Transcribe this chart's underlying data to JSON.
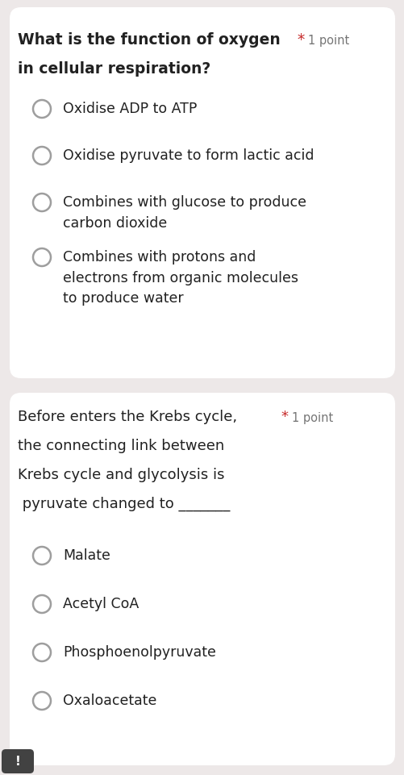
{
  "bg_color": "#ede8e8",
  "card_color": "#ffffff",
  "q1_title_bold": "What is the function of oxygen",
  "q1_title_bold2": "in cellular respiration?",
  "q1_star": "*",
  "q1_point": "1 point",
  "q1_options": [
    "Oxidise ADP to ATP",
    "Oxidise pyruvate to form lactic acid",
    "Combines with glucose to produce\ncarbon dioxide",
    "Combines with protons and\nelectrons from organic molecules\nto produce water"
  ],
  "q2_title_lines": [
    "Before enters the Krebs cycle,",
    "the connecting link between",
    "Krebs cycle and glycolysis is",
    " pyruvate changed to _______"
  ],
  "q2_star": "*",
  "q2_point": "1 point",
  "q2_options": [
    "Malate",
    "Acetyl CoA",
    "Phosphoenolpyruvate",
    "Oxaloacetate"
  ],
  "text_color": "#212121",
  "star_color": "#c62828",
  "point_color": "#757575",
  "circle_edge_color": "#9e9e9e",
  "circle_face_color": "#ffffff",
  "font_size_question_bold": 13.5,
  "font_size_question": 13.0,
  "font_size_option": 12.5,
  "font_size_point": 10.5,
  "exclaim_color": "#424242"
}
